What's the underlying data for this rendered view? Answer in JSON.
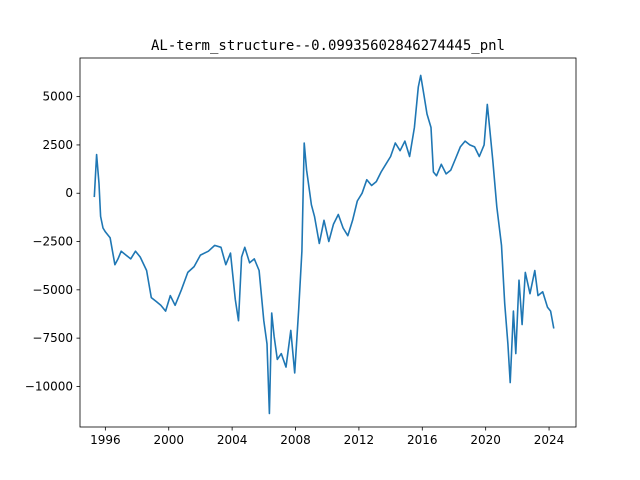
{
  "chart_data": {
    "type": "line",
    "title": "AL-term_structure--0.09935602846274445_pnl",
    "xlabel": "",
    "ylabel": "",
    "xlim": [
      1994.4,
      2025.7
    ],
    "ylim": [
      -12100,
      7000
    ],
    "xticks": [
      1996,
      2000,
      2004,
      2008,
      2012,
      2016,
      2020,
      2024
    ],
    "xtick_labels": [
      "1996",
      "2000",
      "2004",
      "2008",
      "2012",
      "2016",
      "2020",
      "2024"
    ],
    "yticks": [
      -10000,
      -7500,
      -5000,
      -2500,
      0,
      2500,
      5000
    ],
    "ytick_labels": [
      "−10000",
      "−7500",
      "−5000",
      "−2500",
      "0",
      "2500",
      "5000"
    ],
    "grid": false,
    "legend": "none",
    "series": [
      {
        "color": "#1f77b4",
        "x": [
          1995.3,
          1995.45,
          1995.6,
          1995.7,
          1995.85,
          1996.0,
          1996.3,
          1996.6,
          1996.8,
          1997.0,
          1997.3,
          1997.6,
          1997.9,
          1998.2,
          1998.6,
          1998.9,
          1999.2,
          1999.5,
          1999.8,
          2000.1,
          2000.4,
          2000.8,
          2001.2,
          2001.6,
          2002.0,
          2002.5,
          2002.9,
          2003.3,
          2003.6,
          2003.9,
          2004.2,
          2004.4,
          2004.6,
          2004.8,
          2005.1,
          2005.4,
          2005.7,
          2006.0,
          2006.2,
          2006.35,
          2006.5,
          2006.65,
          2006.85,
          2007.1,
          2007.4,
          2007.7,
          2007.95,
          2008.2,
          2008.4,
          2008.55,
          2008.7,
          2008.85,
          2009.0,
          2009.2,
          2009.5,
          2009.8,
          2010.1,
          2010.4,
          2010.7,
          2011.0,
          2011.3,
          2011.6,
          2011.9,
          2012.2,
          2012.5,
          2012.8,
          2013.1,
          2013.4,
          2013.7,
          2014.0,
          2014.3,
          2014.6,
          2014.9,
          2015.2,
          2015.5,
          2015.75,
          2015.9,
          2016.1,
          2016.3,
          2016.55,
          2016.7,
          2016.9,
          2017.2,
          2017.5,
          2017.8,
          2018.1,
          2018.4,
          2018.7,
          2019.0,
          2019.3,
          2019.6,
          2019.9,
          2020.1,
          2020.25,
          2020.45,
          2020.7,
          2021.0,
          2021.2,
          2021.4,
          2021.55,
          2021.75,
          2021.9,
          2022.1,
          2022.3,
          2022.5,
          2022.8,
          2023.1,
          2023.3,
          2023.6,
          2023.9,
          2024.1,
          2024.3
        ],
        "y": [
          -200,
          2000,
          500,
          -1200,
          -1800,
          -2000,
          -2300,
          -3700,
          -3400,
          -3000,
          -3200,
          -3400,
          -3000,
          -3300,
          -4000,
          -5400,
          -5600,
          -5800,
          -6100,
          -5300,
          -5800,
          -5000,
          -4100,
          -3800,
          -3200,
          -3000,
          -2700,
          -2800,
          -3700,
          -3100,
          -5500,
          -6600,
          -3300,
          -2800,
          -3600,
          -3400,
          -4000,
          -6600,
          -7800,
          -11400,
          -6200,
          -7400,
          -8600,
          -8300,
          -9000,
          -7100,
          -9300,
          -6000,
          -3000,
          2600,
          1200,
          300,
          -600,
          -1200,
          -2600,
          -1400,
          -2500,
          -1600,
          -1100,
          -1800,
          -2200,
          -1400,
          -400,
          0,
          700,
          400,
          600,
          1100,
          1500,
          1900,
          2600,
          2200,
          2700,
          1900,
          3400,
          5500,
          6100,
          5100,
          4100,
          3400,
          1100,
          900,
          1500,
          1000,
          1200,
          1800,
          2400,
          2700,
          2500,
          2400,
          1900,
          2500,
          4600,
          3400,
          1700,
          -700,
          -2700,
          -5700,
          -7800,
          -9800,
          -6100,
          -8300,
          -4500,
          -6800,
          -4100,
          -5200,
          -4000,
          -5300,
          -5100,
          -5900,
          -6100,
          -7000
        ]
      }
    ]
  }
}
